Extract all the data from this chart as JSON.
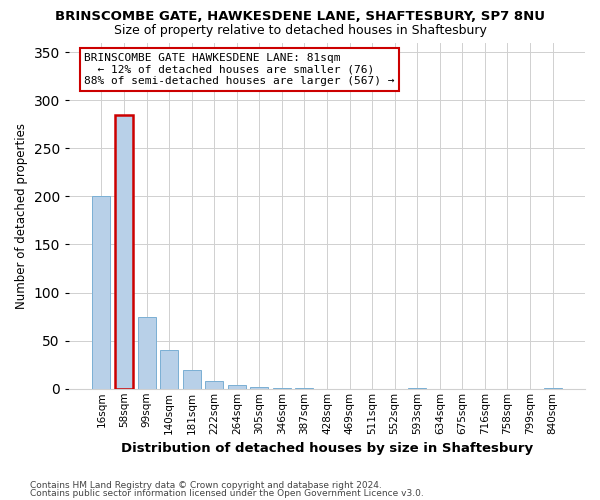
{
  "title": "BRINSCOMBE GATE, HAWKESDENE LANE, SHAFTESBURY, SP7 8NU",
  "subtitle": "Size of property relative to detached houses in Shaftesbury",
  "xlabel": "Distribution of detached houses by size in Shaftesbury",
  "ylabel": "Number of detached properties",
  "footnote1": "Contains HM Land Registry data © Crown copyright and database right 2024.",
  "footnote2": "Contains public sector information licensed under the Open Government Licence v3.0.",
  "categories": [
    "16sqm",
    "58sqm",
    "99sqm",
    "140sqm",
    "181sqm",
    "222sqm",
    "264sqm",
    "305sqm",
    "346sqm",
    "387sqm",
    "428sqm",
    "469sqm",
    "511sqm",
    "552sqm",
    "593sqm",
    "634sqm",
    "675sqm",
    "716sqm",
    "758sqm",
    "799sqm",
    "840sqm"
  ],
  "values": [
    200,
    285,
    75,
    40,
    20,
    8,
    4,
    2,
    1,
    1,
    0,
    0,
    0,
    0,
    1,
    0,
    0,
    0,
    0,
    0,
    1
  ],
  "bar_color": "#b8d0e8",
  "bar_edge_color": "#7aafd4",
  "highlight_bar_index": 1,
  "highlight_bar_edge_color": "#cc0000",
  "ylim": [
    0,
    360
  ],
  "yticks": [
    0,
    50,
    100,
    150,
    200,
    250,
    300,
    350
  ],
  "annotation_text": "BRINSCOMBE GATE HAWKESDENE LANE: 81sqm\n  ← 12% of detached houses are smaller (76)\n88% of semi-detached houses are larger (567) →",
  "annotation_box_color": "#ffffff",
  "annotation_box_edge_color": "#cc0000",
  "grid_color": "#d0d0d0",
  "background_color": "#ffffff",
  "fig_width": 6.0,
  "fig_height": 5.0,
  "title_fontsize": 9.5,
  "subtitle_fontsize": 9.0,
  "xlabel_fontsize": 9.5,
  "ylabel_fontsize": 8.5,
  "tick_fontsize": 7.5,
  "annotation_fontsize": 8.0,
  "footnote_fontsize": 6.5
}
